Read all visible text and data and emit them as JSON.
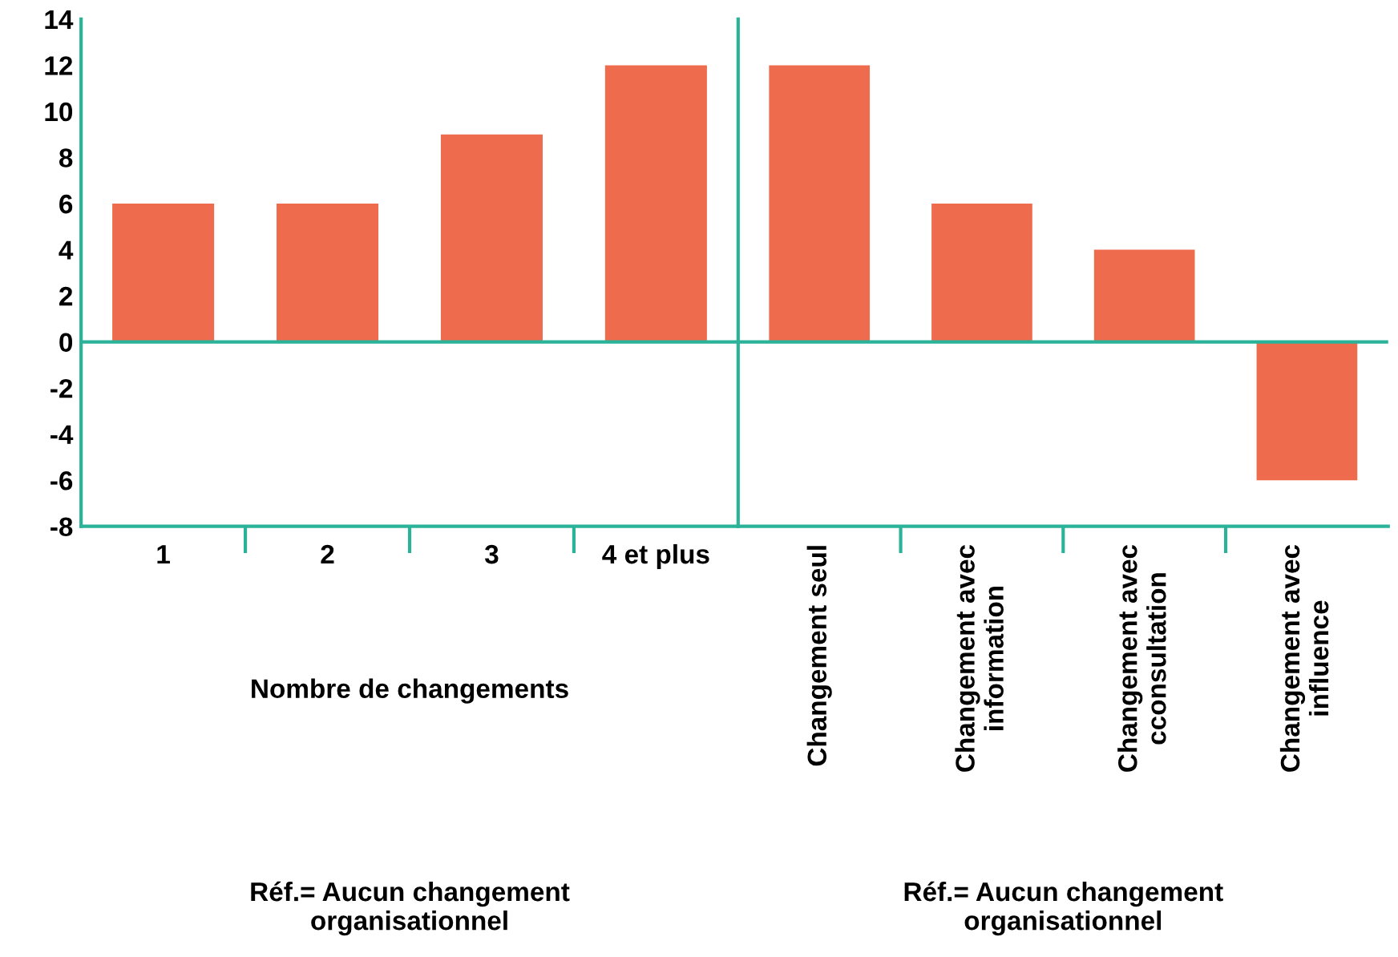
{
  "chart_data": [
    {
      "type": "bar",
      "categories": [
        "1",
        "2",
        "3",
        "4 et plus"
      ],
      "xlabel": "Nombre de changements",
      "values": [
        6,
        6,
        9,
        12
      ],
      "color": "#ee6c4d",
      "ylim": [
        -8,
        14
      ],
      "yticks": [
        -8,
        -6,
        -4,
        -2,
        0,
        2,
        4,
        6,
        8,
        10,
        12,
        14
      ],
      "grid": false,
      "legend": false,
      "ref_lines": [
        {
          "axis": "y",
          "value": 0,
          "color": "#2bb39a"
        }
      ],
      "annotations": [
        "Réf.= Aucun changement\norganisationnel"
      ]
    },
    {
      "type": "bar",
      "categories": [
        "Changement seul",
        "Changement avec\ninformation",
        "Changement avec\ncconsultation",
        "Changement avec\ninfluence"
      ],
      "values": [
        12,
        6,
        4,
        -6
      ],
      "color": "#ee6c4d",
      "ylim": [
        -8,
        14
      ],
      "tick_labels": "x",
      "grid": false,
      "legend": false,
      "ref_lines": [
        {
          "axis": "y",
          "value": 0,
          "color": "#2bb39a"
        }
      ],
      "annotations": [
        "Réf.= Aucun changement\norganisationnel"
      ]
    }
  ]
}
